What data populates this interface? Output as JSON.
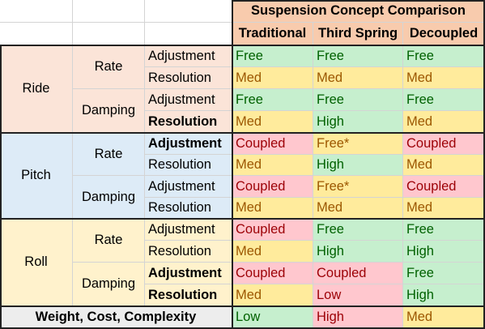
{
  "title": "Suspension Concept Comparison",
  "concepts": [
    "Traditional",
    "Third Spring",
    "Decoupled"
  ],
  "categories": {
    "ride": "Ride",
    "pitch": "Pitch",
    "roll": "Roll"
  },
  "subcategories": {
    "rate": "Rate",
    "damping": "Damping"
  },
  "aspects": {
    "adjustment": "Adjustment",
    "resolution": "Resolution"
  },
  "rows": [
    {
      "values": [
        "Free",
        "Free",
        "Free"
      ]
    },
    {
      "values": [
        "Med",
        "Med",
        "Med"
      ]
    },
    {
      "values": [
        "Free",
        "Free",
        "Free"
      ]
    },
    {
      "values": [
        "Med",
        "High",
        "Med"
      ]
    },
    {
      "values": [
        "Coupled",
        "Free*",
        "Coupled"
      ]
    },
    {
      "values": [
        "Med",
        "High",
        "Med"
      ]
    },
    {
      "values": [
        "Coupled",
        "Free*",
        "Coupled"
      ]
    },
    {
      "values": [
        "Med",
        "Med",
        "Med"
      ]
    },
    {
      "values": [
        "Coupled",
        "Free",
        "Free"
      ]
    },
    {
      "values": [
        "Med",
        "High",
        "High"
      ]
    },
    {
      "values": [
        "Coupled",
        "Coupled",
        "Free"
      ]
    },
    {
      "values": [
        "Med",
        "Low",
        "High"
      ]
    }
  ],
  "footer": {
    "label": "Weight, Cost, Complexity",
    "values": [
      "Low",
      "High",
      "Med"
    ]
  },
  "colors": {
    "good": "#c6efce",
    "medium": "#ffeb9c",
    "bad": "#ffc7ce",
    "header": "#f8cbad",
    "ride": "#fbe4d8",
    "pitch": "#ddebf7",
    "roll": "#fff2cc"
  }
}
